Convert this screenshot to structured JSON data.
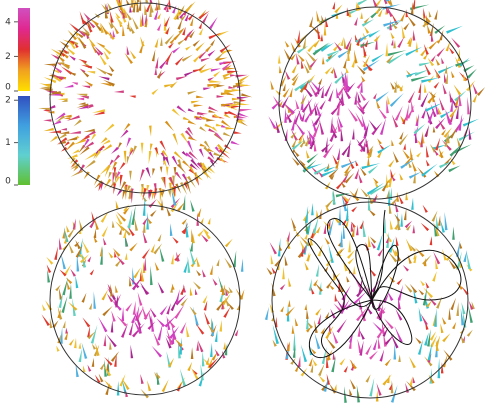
{
  "colorbars": [
    {
      "ticks": [
        4,
        2,
        0
      ],
      "lim": [
        0,
        4.8
      ],
      "colors": [
        "#ffe000",
        "#f0a020",
        "#e03030",
        "#e02890",
        "#d050c0"
      ]
    },
    {
      "ticks": [
        2,
        1,
        0
      ],
      "lim": [
        0,
        2.1
      ],
      "colors": [
        "#60c030",
        "#60d0d0",
        "#40a0e0",
        "#3050c0"
      ]
    }
  ]
}
